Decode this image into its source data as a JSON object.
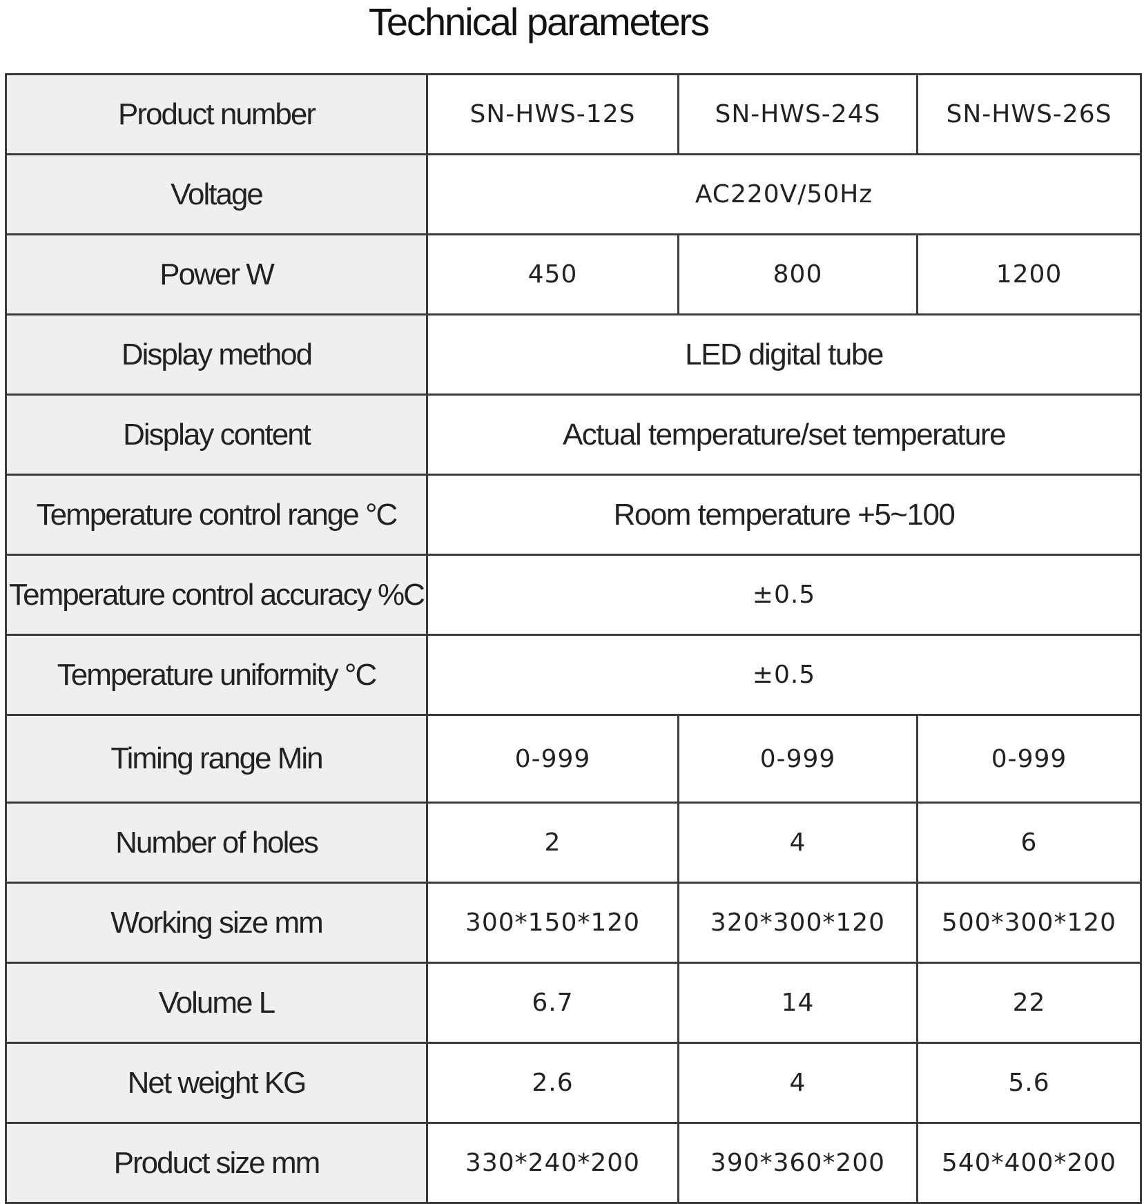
{
  "title": "Technical parameters",
  "table": {
    "rows": [
      [
        "Product number",
        "SN-HWS-12S",
        "SN-HWS-24S",
        "SN-HWS-26S"
      ],
      [
        "Voltage",
        "AC220V/50Hz"
      ],
      [
        "Power W",
        "450",
        "800",
        "1200"
      ],
      [
        "Display method",
        "LED digital tube"
      ],
      [
        "Display content",
        "Actual temperature/set temperature"
      ],
      [
        "Temperature control range °C",
        "Room temperature +5~100"
      ],
      [
        "Temperature control accuracy %C",
        "±0.5"
      ],
      [
        "Temperature uniformity °C",
        "±0.5"
      ],
      [
        "Timing range Min",
        "0-999",
        "0-999",
        "0-999"
      ],
      [
        "Number of holes",
        "2",
        "4",
        "6"
      ],
      [
        "Working size mm",
        "300*150*120",
        "320*300*120",
        "500*300*120"
      ],
      [
        "Volume L",
        "6.7",
        "14",
        "22"
      ],
      [
        "Net weight KG",
        "2.6",
        "4",
        "5.6"
      ],
      [
        "Product size mm",
        "330*240*200",
        "390*360*200",
        "540*400*200"
      ]
    ]
  }
}
